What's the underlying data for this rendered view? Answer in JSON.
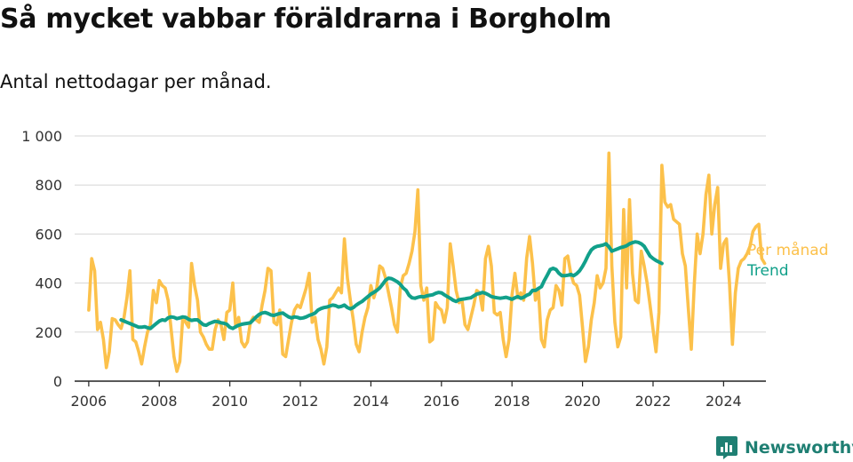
{
  "title": "Så mycket vabbar föräldrarna i Borgholm",
  "subtitle": "Antal nettodagar per månad.",
  "brand": {
    "name": "Newsworthy",
    "icon": "bar-chart-speech-bubble-icon",
    "color": "#1f7f73"
  },
  "chart_data": {
    "type": "line",
    "title": "Så mycket vabbar föräldrarna i Borgholm",
    "subtitle": "Antal nettodagar per månad.",
    "xlabel": "",
    "ylabel": "",
    "xlim": [
      2005.6,
      2025.2
    ],
    "ylim": [
      0,
      1000
    ],
    "y_ticks": [
      0,
      200,
      400,
      600,
      800,
      1000
    ],
    "y_tick_labels": [
      "0",
      "200",
      "400",
      "600",
      "800",
      "1 000"
    ],
    "x_ticks": [
      2006,
      2008,
      2010,
      2012,
      2014,
      2016,
      2018,
      2020,
      2022,
      2024
    ],
    "x_tick_labels": [
      "2006",
      "2008",
      "2010",
      "2012",
      "2014",
      "2016",
      "2018",
      "2020",
      "2022",
      "2024"
    ],
    "grid": true,
    "legend": "right, labels at end of lines",
    "series": [
      {
        "name": "Per månad",
        "color": "#fcc14b",
        "x_start": 2006.0,
        "x_step": 0.08333,
        "values": [
          290,
          500,
          450,
          210,
          240,
          170,
          55,
          120,
          255,
          250,
          230,
          215,
          260,
          340,
          450,
          170,
          160,
          120,
          70,
          140,
          200,
          230,
          370,
          320,
          410,
          390,
          380,
          330,
          215,
          100,
          40,
          80,
          260,
          240,
          220,
          480,
          390,
          330,
          200,
          180,
          150,
          130,
          130,
          210,
          250,
          230,
          170,
          280,
          290,
          400,
          220,
          260,
          160,
          140,
          160,
          240,
          260,
          250,
          240,
          310,
          370,
          460,
          450,
          240,
          230,
          290,
          110,
          100,
          170,
          240,
          290,
          310,
          300,
          340,
          380,
          440,
          240,
          260,
          170,
          130,
          70,
          140,
          330,
          340,
          360,
          380,
          360,
          580,
          420,
          330,
          250,
          150,
          120,
          200,
          260,
          300,
          390,
          340,
          380,
          470,
          460,
          420,
          360,
          300,
          230,
          200,
          380,
          430,
          440,
          480,
          530,
          610,
          780,
          390,
          330,
          380,
          160,
          170,
          320,
          300,
          290,
          240,
          300,
          560,
          470,
          370,
          320,
          330,
          230,
          210,
          260,
          310,
          370,
          360,
          290,
          500,
          550,
          470,
          280,
          270,
          280,
          170,
          100,
          170,
          350,
          440,
          340,
          360,
          330,
          500,
          590,
          480,
          330,
          370,
          170,
          140,
          250,
          290,
          300,
          390,
          370,
          310,
          500,
          510,
          440,
          400,
          390,
          350,
          220,
          80,
          140,
          250,
          320,
          430,
          380,
          400,
          460,
          930,
          470,
          240,
          140,
          180,
          700,
          380,
          740,
          440,
          330,
          320,
          530,
          470,
          400,
          310,
          210,
          120,
          280,
          880,
          730,
          710,
          720,
          660,
          650,
          640,
          520,
          470,
          300,
          130,
          390,
          600,
          520,
          600,
          760,
          840,
          600,
          720,
          790,
          460,
          560,
          580,
          400,
          150,
          360,
          460,
          490,
          500,
          520,
          550,
          610,
          630,
          640,
          500,
          480
        ]
      },
      {
        "name": "Trend",
        "color": "#11a08a",
        "x_start": 2006.9167,
        "x_step": 0.08333,
        "values": [
          250,
          245,
          240,
          235,
          230,
          225,
          220,
          220,
          222,
          218,
          215,
          225,
          235,
          245,
          250,
          248,
          258,
          262,
          260,
          255,
          258,
          262,
          260,
          252,
          248,
          250,
          250,
          240,
          230,
          228,
          235,
          240,
          244,
          242,
          238,
          236,
          232,
          220,
          215,
          222,
          228,
          232,
          234,
          236,
          238,
          250,
          262,
          272,
          278,
          280,
          276,
          270,
          268,
          272,
          276,
          278,
          270,
          262,
          258,
          262,
          260,
          256,
          258,
          262,
          268,
          272,
          278,
          290,
          296,
          300,
          302,
          306,
          310,
          308,
          302,
          305,
          310,
          300,
          295,
          300,
          310,
          318,
          325,
          335,
          345,
          355,
          362,
          370,
          380,
          395,
          412,
          420,
          418,
          412,
          405,
          395,
          380,
          370,
          350,
          340,
          338,
          342,
          345,
          344,
          348,
          350,
          352,
          358,
          362,
          360,
          352,
          345,
          338,
          330,
          325,
          332,
          334,
          336,
          338,
          340,
          348,
          355,
          358,
          362,
          358,
          352,
          345,
          342,
          340,
          338,
          340,
          342,
          338,
          334,
          340,
          345,
          338,
          342,
          350,
          355,
          370,
          370,
          378,
          385,
          410,
          432,
          455,
          460,
          455,
          440,
          430,
          430,
          432,
          435,
          430,
          438,
          450,
          468,
          490,
          515,
          535,
          545,
          550,
          552,
          555,
          560,
          548,
          530,
          535,
          540,
          545,
          548,
          552,
          560,
          565,
          568,
          566,
          560,
          550,
          530,
          510,
          500,
          492,
          486,
          480
        ]
      }
    ]
  }
}
